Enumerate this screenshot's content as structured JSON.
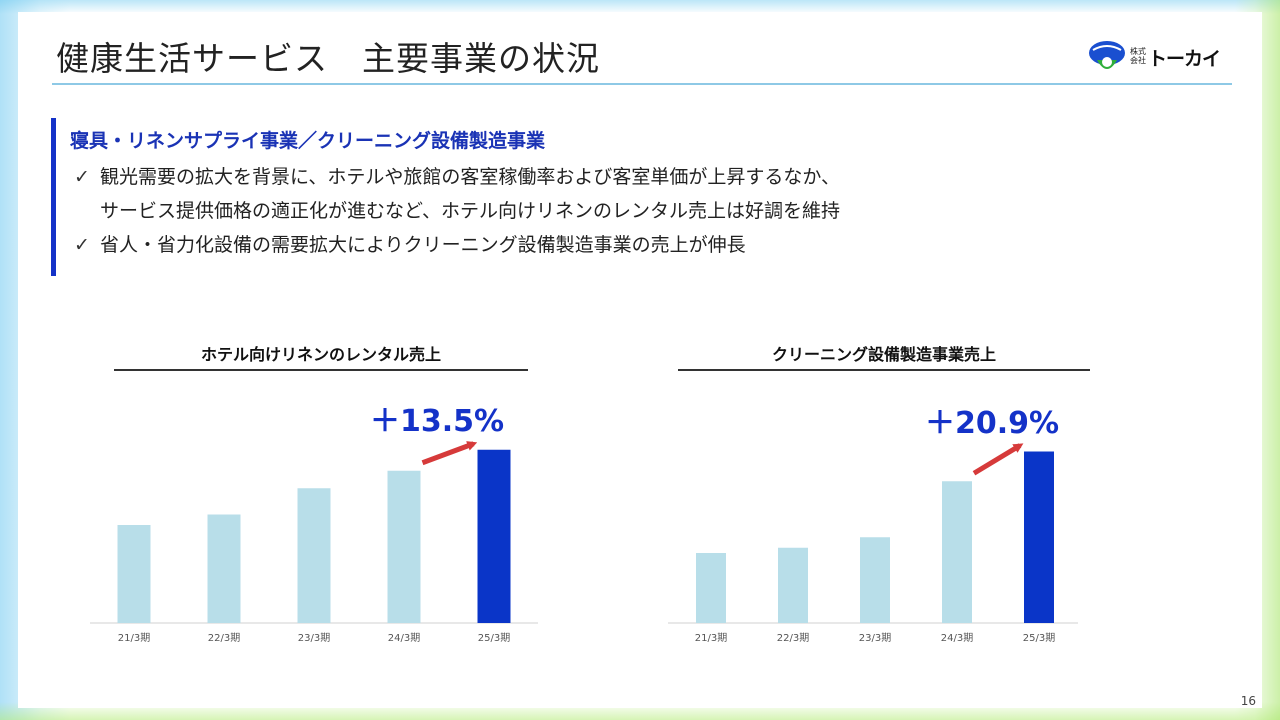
{
  "header": {
    "title": "健康生活サービス　主要事業の状況",
    "logo_small_1": "株式",
    "logo_small_2": "会社",
    "logo_text": "トーカイ"
  },
  "callout": {
    "heading": "寝具・リネンサプライ事業／クリーニング設備製造事業",
    "bullets": [
      {
        "check": "✓",
        "line1": "観光需要の拡大を背景に、ホテルや旅館の客室稼働率および客室単価が上昇するなか、",
        "line2": "サービス提供価格の適正化が進むなど、ホテル向けリネンのレンタル売上は好調を維持"
      },
      {
        "check": "✓",
        "line1": "省人・省力化設備の需要拡大によりクリーニング設備製造事業の売上が伸長"
      }
    ]
  },
  "chart_data": [
    {
      "type": "bar",
      "title": "ホテル向けリネンのレンタル売上",
      "categories": [
        "21/3期",
        "22/3期",
        "23/3期",
        "24/3期",
        "25/3期"
      ],
      "values": [
        56,
        62,
        77,
        87,
        99
      ],
      "ylim": [
        0,
        100
      ],
      "annotation": "＋13.5%",
      "colors": {
        "base": "#b8dee9",
        "highlight": "#0a35c8",
        "arrow": "#d63a3a"
      }
    },
    {
      "type": "bar",
      "title": "クリーニング設備製造事業売上",
      "categories": [
        "21/3期",
        "22/3期",
        "23/3期",
        "24/3期",
        "25/3期"
      ],
      "values": [
        40,
        43,
        49,
        81,
        98
      ],
      "ylim": [
        0,
        100
      ],
      "annotation": "＋20.9%",
      "colors": {
        "base": "#b8dee9",
        "highlight": "#0a35c8",
        "arrow": "#d63a3a"
      }
    }
  ],
  "footer": {
    "page": "16"
  }
}
